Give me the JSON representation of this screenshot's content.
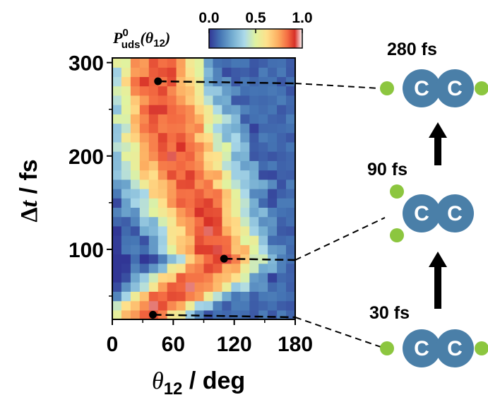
{
  "chart_data": {
    "type": "heatmap",
    "xlabel": "θ12 / deg",
    "ylabel": "Δt / fs",
    "x_ticks": [
      "0",
      "60",
      "120",
      "180"
    ],
    "y_ticks": [
      "100",
      "200",
      "300"
    ],
    "xlim": [
      0,
      180
    ],
    "ylim": [
      25,
      305
    ],
    "bin_width_deg": 9,
    "colorbar": {
      "label": "P⁰uds(θ12)",
      "ticks": [
        "0.0",
        "0.5",
        "1.0"
      ],
      "range": [
        0,
        1
      ],
      "colormap": [
        "#313695",
        "#4575b4",
        "#74add1",
        "#abd9e9",
        "#e0f3a0",
        "#fee08b",
        "#fdae61",
        "#f46d43",
        "#d73027",
        "#ffffff"
      ]
    },
    "rows": [
      {
        "t": 300,
        "peak_deg": 45,
        "width_deg": 32
      },
      {
        "t": 280,
        "peak_deg": 45,
        "width_deg": 34
      },
      {
        "t": 260,
        "peak_deg": 50,
        "width_deg": 36
      },
      {
        "t": 240,
        "peak_deg": 55,
        "width_deg": 38
      },
      {
        "t": 220,
        "peak_deg": 58,
        "width_deg": 40
      },
      {
        "t": 200,
        "peak_deg": 62,
        "width_deg": 40
      },
      {
        "t": 180,
        "peak_deg": 70,
        "width_deg": 40
      },
      {
        "t": 160,
        "peak_deg": 78,
        "width_deg": 38
      },
      {
        "t": 140,
        "peak_deg": 85,
        "width_deg": 36
      },
      {
        "t": 120,
        "peak_deg": 95,
        "width_deg": 34
      },
      {
        "t": 100,
        "peak_deg": 100,
        "width_deg": 34
      },
      {
        "t": 90,
        "peak_deg": 105,
        "width_deg": 32
      },
      {
        "t": 80,
        "peak_deg": 95,
        "width_deg": 34
      },
      {
        "t": 60,
        "peak_deg": 75,
        "width_deg": 36
      },
      {
        "t": 40,
        "peak_deg": 45,
        "width_deg": 32
      },
      {
        "t": 30,
        "peak_deg": 35,
        "width_deg": 28
      }
    ],
    "markers": [
      {
        "label": "280 fs",
        "t": 280,
        "theta_deg": 45
      },
      {
        "label": "90 fs",
        "t": 90,
        "theta_deg": 110
      },
      {
        "label": "30 fs",
        "t": 30,
        "theta_deg": 40
      }
    ]
  },
  "molecules": {
    "atom_letter": "C",
    "colors": {
      "carbon": "#4a7fa8",
      "hydrogen": "#8cc63f",
      "arrow": "#000000",
      "marker": "#000000"
    }
  }
}
